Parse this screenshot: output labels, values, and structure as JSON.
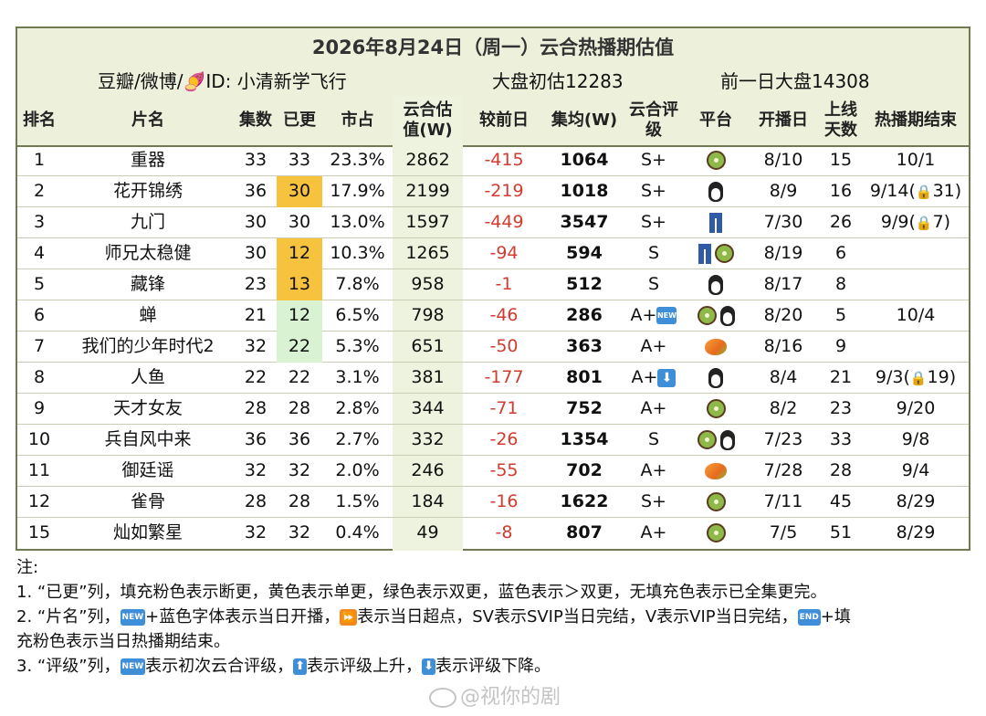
{
  "header": {
    "title": "2026年8月24日（周一）云合热播期估值",
    "source": "豆瓣/微博/🍠ID: 小清新学飞行",
    "base_estimate": "大盘初估12283",
    "prev_day": "前一日大盘14308"
  },
  "columns": {
    "rank": "排名",
    "name": "片名",
    "episodes": "集数",
    "updated": "已更",
    "share": "市占",
    "yunhe_line1": "云合估",
    "yunhe_line2": "值(W)",
    "change": "较前日",
    "avg": "集均(W)",
    "rating_line1": "云合评",
    "rating_line2": "级",
    "platform": "平台",
    "start": "开播日",
    "days_line1": "上线",
    "days_line2": "天数",
    "end": "热播期结束"
  },
  "rows": [
    {
      "rank": "1",
      "name": "重器",
      "episodes": "33",
      "updated": "33",
      "updated_fill": "",
      "share": "23.3%",
      "value": "2862",
      "change": "-415",
      "avg": "1064",
      "rating": "S+",
      "rating_badge": "",
      "platforms": [
        "kiwi"
      ],
      "start": "8/10",
      "days": "15",
      "end": "10/1",
      "end_lock": ""
    },
    {
      "rank": "2",
      "name": "花开锦绣",
      "episodes": "36",
      "updated": "30",
      "updated_fill": "yellow",
      "share": "17.9%",
      "value": "2199",
      "change": "-219",
      "avg": "1018",
      "rating": "S+",
      "rating_badge": "",
      "platforms": [
        "penguin"
      ],
      "start": "8/9",
      "days": "16",
      "end": "9/14(",
      "end_lock": "31)"
    },
    {
      "rank": "3",
      "name": "九门",
      "episodes": "30",
      "updated": "30",
      "updated_fill": "",
      "share": "13.0%",
      "value": "1597",
      "change": "-449",
      "avg": "3547",
      "rating": "S+",
      "rating_badge": "",
      "platforms": [
        "jeans"
      ],
      "start": "7/30",
      "days": "26",
      "end": "9/9(",
      "end_lock": "7)"
    },
    {
      "rank": "4",
      "name": "师兄太稳健",
      "episodes": "30",
      "updated": "12",
      "updated_fill": "yellow",
      "share": "10.3%",
      "value": "1265",
      "change": "-94",
      "avg": "594",
      "rating": "S",
      "rating_badge": "",
      "platforms": [
        "jeans",
        "kiwi"
      ],
      "start": "8/19",
      "days": "6",
      "end": "",
      "end_lock": ""
    },
    {
      "rank": "5",
      "name": "藏锋",
      "episodes": "23",
      "updated": "13",
      "updated_fill": "yellow",
      "share": "7.8%",
      "value": "958",
      "change": "-1",
      "avg": "512",
      "rating": "S",
      "rating_badge": "",
      "platforms": [
        "penguin"
      ],
      "start": "8/17",
      "days": "8",
      "end": "",
      "end_lock": ""
    },
    {
      "rank": "6",
      "name": "蝉",
      "episodes": "21",
      "updated": "12",
      "updated_fill": "green",
      "share": "6.5%",
      "value": "798",
      "change": "-46",
      "avg": "286",
      "rating": "A+",
      "rating_badge": "new",
      "platforms": [
        "kiwi",
        "penguin"
      ],
      "start": "8/20",
      "days": "5",
      "end": "10/4",
      "end_lock": ""
    },
    {
      "rank": "7",
      "name": "我们的少年时代2",
      "episodes": "32",
      "updated": "22",
      "updated_fill": "green",
      "share": "5.3%",
      "value": "651",
      "change": "-50",
      "avg": "363",
      "rating": "A+",
      "rating_badge": "",
      "platforms": [
        "mango"
      ],
      "start": "8/16",
      "days": "9",
      "end": "",
      "end_lock": ""
    },
    {
      "rank": "8",
      "name": "人鱼",
      "episodes": "22",
      "updated": "22",
      "updated_fill": "",
      "share": "3.1%",
      "value": "381",
      "change": "-177",
      "avg": "801",
      "rating": "A+",
      "rating_badge": "down",
      "platforms": [
        "penguin"
      ],
      "start": "8/4",
      "days": "21",
      "end": "9/3(",
      "end_lock": "19)"
    },
    {
      "rank": "9",
      "name": "天才女友",
      "episodes": "28",
      "updated": "28",
      "updated_fill": "",
      "share": "2.8%",
      "value": "344",
      "change": "-71",
      "avg": "752",
      "rating": "A+",
      "rating_badge": "",
      "platforms": [
        "kiwi"
      ],
      "start": "8/2",
      "days": "23",
      "end": "9/20",
      "end_lock": ""
    },
    {
      "rank": "10",
      "name": "兵自风中来",
      "episodes": "36",
      "updated": "36",
      "updated_fill": "",
      "share": "2.7%",
      "value": "332",
      "change": "-26",
      "avg": "1354",
      "rating": "S",
      "rating_badge": "",
      "platforms": [
        "kiwi",
        "penguin"
      ],
      "start": "7/23",
      "days": "33",
      "end": "9/8",
      "end_lock": ""
    },
    {
      "rank": "11",
      "name": "御廷谣",
      "episodes": "32",
      "updated": "32",
      "updated_fill": "",
      "share": "2.0%",
      "value": "246",
      "change": "-55",
      "avg": "702",
      "rating": "A+",
      "rating_badge": "",
      "platforms": [
        "mango"
      ],
      "start": "7/28",
      "days": "28",
      "end": "9/4",
      "end_lock": ""
    },
    {
      "rank": "12",
      "name": "雀骨",
      "episodes": "28",
      "updated": "28",
      "updated_fill": "",
      "share": "1.5%",
      "value": "184",
      "change": "-16",
      "avg": "1622",
      "rating": "S+",
      "rating_badge": "",
      "platforms": [
        "kiwi"
      ],
      "start": "7/11",
      "days": "45",
      "end": "8/29",
      "end_lock": ""
    },
    {
      "rank": "15",
      "name": "灿如繁星",
      "episodes": "32",
      "updated": "32",
      "updated_fill": "",
      "share": "0.4%",
      "value": "49",
      "change": "-8",
      "avg": "807",
      "rating": "A+",
      "rating_badge": "",
      "platforms": [
        "kiwi"
      ],
      "start": "7/5",
      "days": "51",
      "end": "8/29",
      "end_lock": ""
    }
  ],
  "badges": {
    "new": "NEW",
    "down": "⬇",
    "up": "⬆",
    "ff": "⏩",
    "end": "END",
    "lock": "🔒"
  },
  "notes": {
    "heading": "注:",
    "line1": "1. “已更”列，填充粉色表示断更，黄色表示单更，绿色表示双更，蓝色表示＞双更，无填充色表示已全集更完。",
    "line2_a": "2. “片名”列，",
    "line2_b": "+蓝色字体表示当日开播，",
    "line2_c": "表示当日超点，SV表示SVIP当日完结，V表示VIP当日完结，",
    "line2_d": "+填",
    "line2_e": "充粉色表示当日热播期结束。",
    "line3_a": "3. “评级”列，",
    "line3_b": "表示初次云合评级，",
    "line3_c": "表示评级上升，",
    "line3_d": "表示评级下降。"
  },
  "watermark": "@视你的剧"
}
